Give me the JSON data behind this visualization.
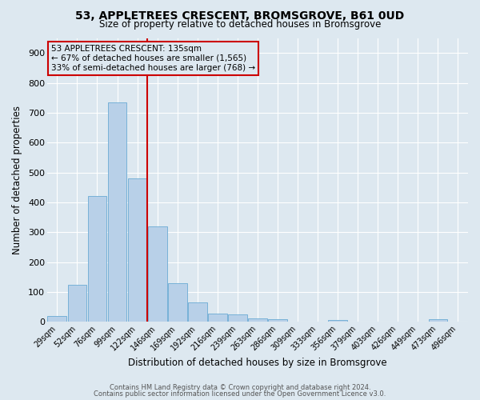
{
  "title1": "53, APPLETREES CRESCENT, BROMSGROVE, B61 0UD",
  "title2": "Size of property relative to detached houses in Bromsgrove",
  "xlabel": "Distribution of detached houses by size in Bromsgrove",
  "ylabel": "Number of detached properties",
  "footnote1": "Contains HM Land Registry data © Crown copyright and database right 2024.",
  "footnote2": "Contains public sector information licensed under the Open Government Licence v3.0.",
  "bar_labels": [
    "29sqm",
    "52sqm",
    "76sqm",
    "99sqm",
    "122sqm",
    "146sqm",
    "169sqm",
    "192sqm",
    "216sqm",
    "239sqm",
    "263sqm",
    "286sqm",
    "309sqm",
    "333sqm",
    "356sqm",
    "379sqm",
    "403sqm",
    "426sqm",
    "449sqm",
    "473sqm",
    "496sqm"
  ],
  "bar_values": [
    20,
    125,
    420,
    735,
    480,
    320,
    130,
    65,
    27,
    24,
    12,
    9,
    0,
    0,
    7,
    0,
    0,
    0,
    0,
    9,
    0
  ],
  "bar_color": "#b8d0e8",
  "bar_edge_color": "#6aaad4",
  "background_color": "#dde8f0",
  "grid_color": "#ffffff",
  "vline_color": "#cc0000",
  "vline_x": 4.5,
  "annotation_text": "53 APPLETREES CRESCENT: 135sqm\n← 67% of detached houses are smaller (1,565)\n33% of semi-detached houses are larger (768) →",
  "ylim": [
    0,
    950
  ],
  "yticks": [
    0,
    100,
    200,
    300,
    400,
    500,
    600,
    700,
    800,
    900
  ]
}
